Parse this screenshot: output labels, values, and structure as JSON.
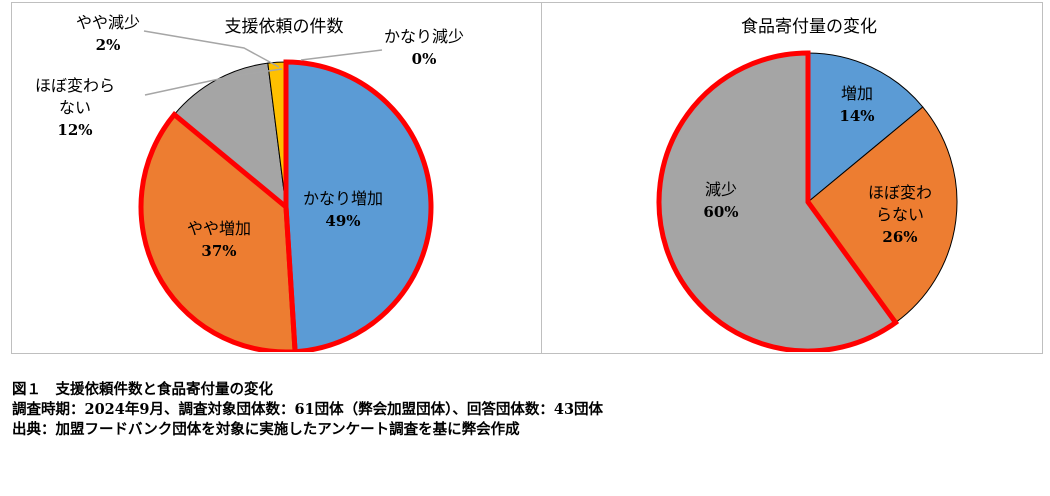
{
  "chart_data": [
    {
      "type": "pie",
      "title": "支援依頼の件数",
      "categories": [
        "かなり増加",
        "やや増加",
        "ほぼ変わらない",
        "やや減少",
        "かなり減少"
      ],
      "display_labels": [
        [
          "かなり増加"
        ],
        [
          "やや増加"
        ],
        [
          "ほぼ変わら",
          "ない"
        ],
        [
          "やや減少"
        ],
        [
          "かなり減少"
        ]
      ],
      "values": [
        49,
        37,
        12,
        2,
        0
      ],
      "value_labels": [
        "49%",
        "37%",
        "12%",
        "2%",
        "0%"
      ],
      "colors": [
        "#5b9bd5",
        "#ed7d31",
        "#a5a5a5",
        "#ffc000",
        "#4472c4"
      ],
      "highlighted": [
        "かなり増加",
        "やや増加"
      ],
      "highlight_color": "#ff0000"
    },
    {
      "type": "pie",
      "title": "食品寄付量の変化",
      "categories": [
        "増加",
        "ほぼ変わらない",
        "減少"
      ],
      "display_labels": [
        [
          "増加"
        ],
        [
          "ほぼ変わ",
          "らない"
        ],
        [
          "減少"
        ]
      ],
      "values": [
        14,
        26,
        60
      ],
      "value_labels": [
        "14%",
        "26%",
        "60%"
      ],
      "colors": [
        "#5b9bd5",
        "#ed7d31",
        "#a5a5a5"
      ],
      "highlighted": [
        "減少"
      ],
      "highlight_color": "#ff0000"
    }
  ],
  "caption": {
    "line1": "図１　支援依頼件数と食品寄付量の変化",
    "line2": "調査時期：2024年9月、調査対象団体数：61団体（弊会加盟団体）、回答団体数：43団体",
    "line3": "出典：加盟フードバンク団体を対象に実施したアンケート調査を基に弊会作成"
  }
}
